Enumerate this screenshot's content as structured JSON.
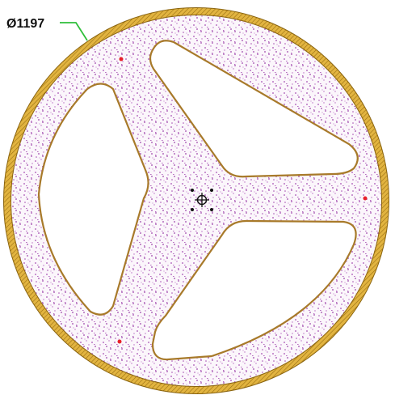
{
  "label": "Ø1197"
}
